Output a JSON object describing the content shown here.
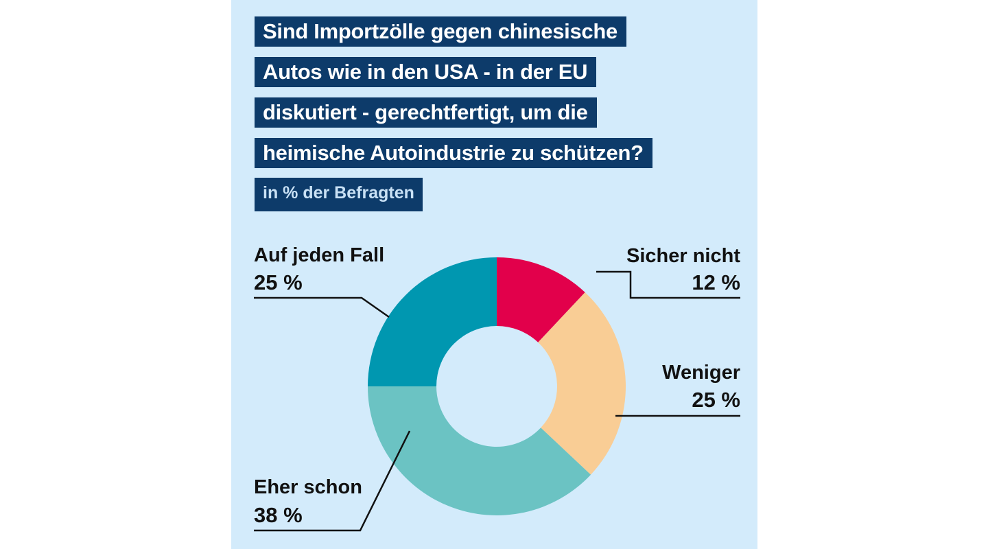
{
  "chart_data": {
    "type": "pie",
    "title_lines": [
      "Sind Importzölle gegen chinesische",
      "Autos wie in den USA - in der EU",
      "diskutiert - gerechtfertigt, um die",
      "heimische Autoindustrie zu schützen?"
    ],
    "subtitle": "in % der Befragten",
    "donut": true,
    "slices": [
      {
        "label": "Sicher nicht",
        "value": 12,
        "display": "12 %",
        "color": "#e2004b"
      },
      {
        "label": "Weniger",
        "value": 25,
        "display": "25 %",
        "color": "#f9cd95"
      },
      {
        "label": "Eher schon",
        "value": 38,
        "display": "38 %",
        "color": "#6bc3c3"
      },
      {
        "label": "Auf jeden Fall",
        "value": 25,
        "display": "25 %",
        "color": "#0097b0"
      }
    ],
    "colors": {
      "background": "#d3ebfb",
      "title_box": "#0d3b6a",
      "title_text": "#ffffff",
      "subtitle_text": "#c9e1f5",
      "leader_line": "#111111"
    }
  }
}
